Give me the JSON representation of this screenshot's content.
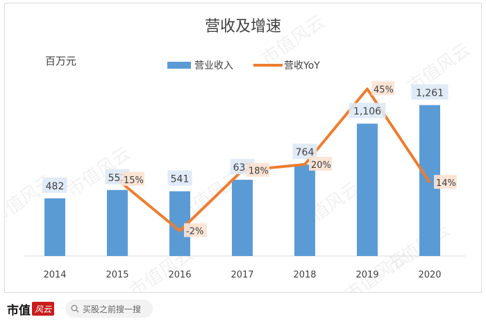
{
  "chart_data": {
    "type": "bar",
    "title": "营收及增速",
    "unit_label": "百万元",
    "categories": [
      "2014",
      "2015",
      "2016",
      "2017",
      "2018",
      "2019",
      "2020"
    ],
    "series": [
      {
        "name": "营业收入",
        "kind": "bar",
        "color": "#5b9bd5",
        "values": [
          482,
          552,
          541,
          637,
          764,
          1106,
          1261
        ],
        "labels": [
          "482",
          "552",
          "541",
          "637",
          "764",
          "1,106",
          "1,261"
        ]
      },
      {
        "name": "营收YoY",
        "kind": "line",
        "color": "#ed7d31",
        "values": [
          null,
          15,
          -2,
          18,
          20,
          45,
          14
        ],
        "labels": [
          null,
          "15%",
          "-2%",
          "18%",
          "20%",
          "45%",
          "14%"
        ]
      }
    ],
    "legend_position": "top",
    "grid": false
  },
  "watermark": "市值风云",
  "footer": {
    "logo_text": "市值",
    "logo_mark": "风云",
    "search_placeholder": "买股之前搜一搜"
  },
  "colors": {
    "bar_label_bg": "#dde9f6",
    "line_label_bg": "#fbe3d4",
    "axis": "#d9d9d9",
    "text": "#404040"
  }
}
